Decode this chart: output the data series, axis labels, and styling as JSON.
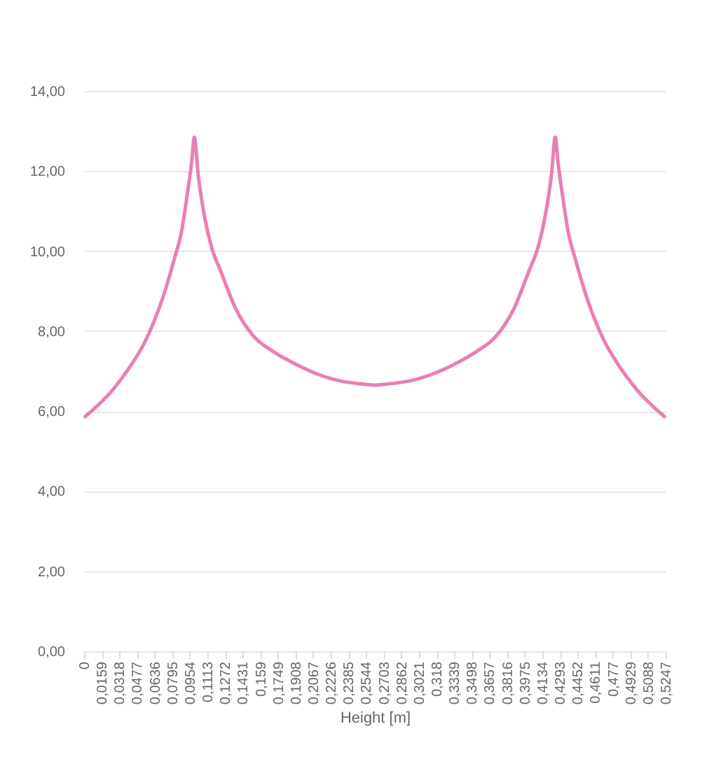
{
  "chart_data": {
    "type": "line",
    "xlabel": "Height [m]",
    "x": [
      0,
      0.0261,
      0.04,
      0.0556,
      0.07,
      0.0809,
      0.088,
      0.0936,
      0.097,
      0.0995,
      0.103,
      0.1083,
      0.115,
      0.123,
      0.137,
      0.1526,
      0.17,
      0.1905,
      0.21,
      0.2284,
      0.2435,
      0.258,
      0.26235,
      0.2667,
      0.2812,
      0.2963,
      0.3147,
      0.3347,
      0.3547,
      0.3721,
      0.3877,
      0.4017,
      0.4097,
      0.4164,
      0.4217,
      0.4252,
      0.4277,
      0.4311,
      0.4367,
      0.4438,
      0.4547,
      0.4691,
      0.4847,
      0.4986,
      0.5247
    ],
    "series": [
      {
        "color": "#e87fb4",
        "values": [
          5.84,
          6.54,
          7.05,
          7.77,
          8.75,
          9.75,
          10.5,
          11.51,
          12.2,
          12.85,
          11.9,
          10.92,
          10.1,
          9.52,
          8.55,
          7.88,
          7.5,
          7.18,
          6.93,
          6.77,
          6.7,
          6.66,
          6.65,
          6.66,
          6.7,
          6.77,
          6.93,
          7.18,
          7.5,
          7.88,
          8.55,
          9.52,
          10.1,
          10.92,
          11.9,
          12.85,
          12.2,
          11.51,
          10.5,
          9.75,
          8.75,
          7.77,
          7.05,
          6.54,
          5.84
        ]
      }
    ],
    "xlim": [
      0,
      0.5247
    ],
    "xticks": [
      {
        "value": 0,
        "label": "0"
      },
      {
        "value": 0.0159,
        "label": "0,0159"
      },
      {
        "value": 0.0318,
        "label": "0,0318"
      },
      {
        "value": 0.0477,
        "label": "0,0477"
      },
      {
        "value": 0.0636,
        "label": "0,0636"
      },
      {
        "value": 0.0795,
        "label": "0,0795"
      },
      {
        "value": 0.0954,
        "label": "0,0954"
      },
      {
        "value": 0.1113,
        "label": "0,1113"
      },
      {
        "value": 0.1272,
        "label": "0,1272"
      },
      {
        "value": 0.1431,
        "label": "0,1431"
      },
      {
        "value": 0.159,
        "label": "0,159"
      },
      {
        "value": 0.1749,
        "label": "0,1749"
      },
      {
        "value": 0.1908,
        "label": "0,1908"
      },
      {
        "value": 0.2067,
        "label": "0,2067"
      },
      {
        "value": 0.2226,
        "label": "0,2226"
      },
      {
        "value": 0.2385,
        "label": "0,2385"
      },
      {
        "value": 0.2544,
        "label": "0,2544"
      },
      {
        "value": 0.2703,
        "label": "0,2703"
      },
      {
        "value": 0.2862,
        "label": "0,2862"
      },
      {
        "value": 0.3021,
        "label": "0,3021"
      },
      {
        "value": 0.318,
        "label": "0,318"
      },
      {
        "value": 0.3339,
        "label": "0,3339"
      },
      {
        "value": 0.3498,
        "label": "0,3498"
      },
      {
        "value": 0.3657,
        "label": "0,3657"
      },
      {
        "value": 0.3816,
        "label": "0,3816"
      },
      {
        "value": 0.3975,
        "label": "0,3975"
      },
      {
        "value": 0.4134,
        "label": "0,4134"
      },
      {
        "value": 0.4293,
        "label": "0,4293"
      },
      {
        "value": 0.4452,
        "label": "0,4452"
      },
      {
        "value": 0.4611,
        "label": "0,4611"
      },
      {
        "value": 0.477,
        "label": "0,477"
      },
      {
        "value": 0.4929,
        "label": "0,4929"
      },
      {
        "value": 0.5088,
        "label": "0,5088"
      },
      {
        "value": 0.5247,
        "label": "0,5247"
      }
    ],
    "ylim": [
      0,
      14
    ],
    "yticks": [
      {
        "value": 0,
        "label": "0,00"
      },
      {
        "value": 2,
        "label": "2,00"
      },
      {
        "value": 4,
        "label": "4,00"
      },
      {
        "value": 6,
        "label": "6,00"
      },
      {
        "value": 8,
        "label": "8,00"
      },
      {
        "value": 10,
        "label": "10,00"
      },
      {
        "value": 12,
        "label": "12,00"
      },
      {
        "value": 14,
        "label": "14,00"
      }
    ],
    "grid": "y",
    "line_style": "solid",
    "marker": "none"
  }
}
